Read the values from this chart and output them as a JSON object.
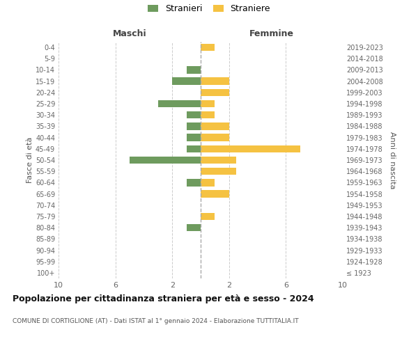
{
  "age_groups": [
    "100+",
    "95-99",
    "90-94",
    "85-89",
    "80-84",
    "75-79",
    "70-74",
    "65-69",
    "60-64",
    "55-59",
    "50-54",
    "45-49",
    "40-44",
    "35-39",
    "30-34",
    "25-29",
    "20-24",
    "15-19",
    "10-14",
    "5-9",
    "0-4"
  ],
  "birth_years": [
    "≤ 1923",
    "1924-1928",
    "1929-1933",
    "1934-1938",
    "1939-1943",
    "1944-1948",
    "1949-1953",
    "1954-1958",
    "1959-1963",
    "1964-1968",
    "1969-1973",
    "1974-1978",
    "1979-1983",
    "1984-1988",
    "1989-1993",
    "1994-1998",
    "1999-2003",
    "2004-2008",
    "2009-2013",
    "2014-2018",
    "2019-2023"
  ],
  "males": [
    0,
    0,
    0,
    0,
    1,
    0,
    0,
    0,
    1,
    0,
    5,
    1,
    1,
    1,
    1,
    3,
    0,
    2,
    1,
    0,
    0
  ],
  "females": [
    0,
    0,
    0,
    0,
    0,
    1,
    0,
    2,
    1,
    2.5,
    2.5,
    7,
    2,
    2,
    1,
    1,
    2,
    2,
    0,
    0,
    1
  ],
  "color_male": "#6e9b5e",
  "color_female": "#f5c242",
  "xlim": 10,
  "title": "Popolazione per cittadinanza straniera per età e sesso - 2024",
  "subtitle": "COMUNE DI CORTIGLIONE (AT) - Dati ISTAT al 1° gennaio 2024 - Elaborazione TUTTITALIA.IT",
  "ylabel_left": "Fasce di età",
  "ylabel_right": "Anni di nascita",
  "header_left": "Maschi",
  "header_right": "Femmine",
  "legend_male": "Stranieri",
  "legend_female": "Straniere",
  "background_color": "#ffffff",
  "grid_color": "#cccccc"
}
